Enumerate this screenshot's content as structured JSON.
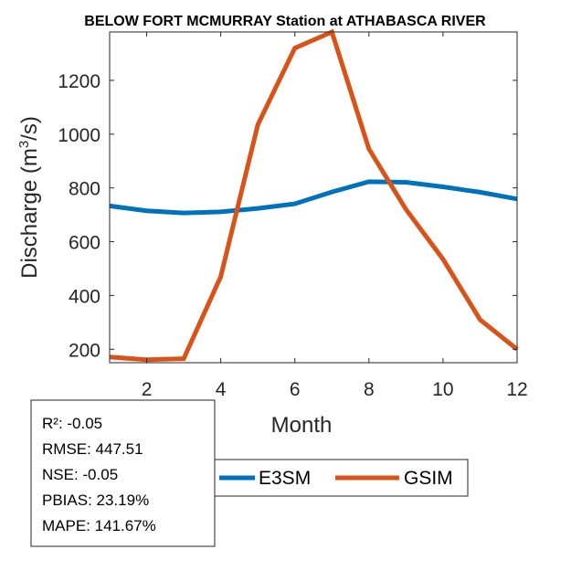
{
  "chart_data": {
    "type": "line",
    "title": "BELOW FORT MCMURRAY  Station at  ATHABASCA RIVER",
    "xlabel": "Month",
    "ylabel_prefix": "Discharge (m",
    "ylabel_sup": "3",
    "ylabel_suffix": "/s)",
    "xlim": [
      1,
      12
    ],
    "ylim": [
      150,
      1380
    ],
    "xticks": [
      2,
      4,
      6,
      8,
      10,
      12
    ],
    "yticks": [
      200,
      400,
      600,
      800,
      1000,
      1200
    ],
    "grid": false,
    "legend_position": "bottom",
    "x": [
      1,
      2,
      3,
      4,
      5,
      6,
      7,
      8,
      9,
      10,
      11,
      12
    ],
    "series": [
      {
        "name": "E3SM",
        "color": "#0072BD",
        "values": [
          733,
          715,
          707,
          711,
          724,
          741,
          785,
          823,
          821,
          804,
          784,
          759
        ]
      },
      {
        "name": "GSIM",
        "color": "#D95319",
        "values": [
          171,
          161,
          165,
          470,
          1035,
          1320,
          1380,
          945,
          720,
          535,
          310,
          200
        ]
      }
    ]
  },
  "stats_box": {
    "lines": [
      "R²: -0.05",
      "RMSE: 447.51",
      "NSE: -0.05",
      "PBIAS: 23.19%",
      "MAPE: 141.67%"
    ]
  }
}
